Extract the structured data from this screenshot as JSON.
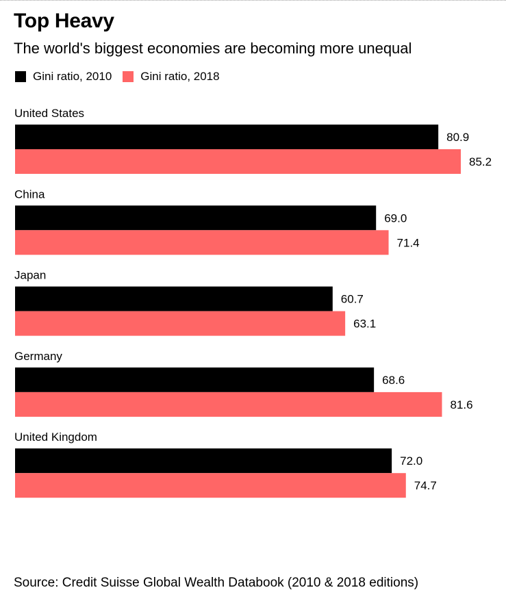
{
  "chart_data": {
    "type": "bar",
    "orientation": "horizontal",
    "title": "Top Heavy",
    "subtitle": "The world's biggest economies are becoming more unequal",
    "categories": [
      "United States",
      "China",
      "Japan",
      "Germany",
      "United Kingdom"
    ],
    "series": [
      {
        "name": "Gini ratio, 2010",
        "color": "#000000",
        "values": [
          80.9,
          69.0,
          60.7,
          68.6,
          72.0
        ],
        "labels": [
          "80.9",
          "69.0",
          "60.7",
          "68.6",
          "72.0"
        ]
      },
      {
        "name": "Gini ratio, 2018",
        "color": "#ff6666",
        "values": [
          85.2,
          71.4,
          63.1,
          81.6,
          74.7
        ],
        "labels": [
          "85.2",
          "71.4",
          "63.1",
          "81.6",
          "74.7"
        ]
      }
    ],
    "xlim": [
      0,
      85.2
    ],
    "xlabel": "",
    "ylabel": "",
    "grid": false,
    "legend": "top-left",
    "source": "Source: Credit Suisse Global Wealth Databook (2010 & 2018 editions)"
  }
}
